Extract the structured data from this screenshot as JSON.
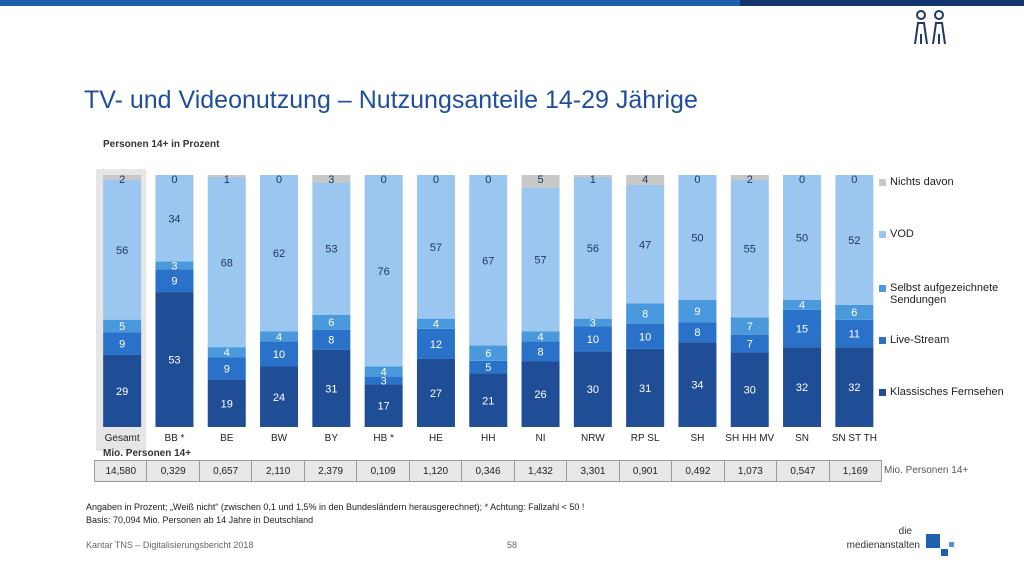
{
  "page": {
    "title": "TV- und Videonutzung – Nutzungsanteile 14-29 Jährige",
    "subtitle": "Personen 14+ in Prozent",
    "mio_title": "Mio. Personen 14+",
    "mio_side_label": "Mio.  Personen 14+",
    "note_line1": "Angaben in Prozent; „Weiß nicht“ (zwischen 0,1 und 1,5% in den Bundesländern herausgerechnet); * Achtung: Fallzahl < 50 !",
    "note_line2": "Basis: 70,094 Mio. Personen ab 14 Jahre in Deutschland",
    "footer": "Kantar TNS – Digitalisierungsbericht 2018",
    "page_number": "58",
    "logo_line1": "die",
    "logo_line2": "medienanstalten",
    "people_icon": "people-icon"
  },
  "mio_values": [
    "14,580",
    "0,329",
    "0,657",
    "2,110",
    "2,379",
    "0,109",
    "1,120",
    "0,346",
    "1,432",
    "3,301",
    "0,901",
    "0,492",
    "1,073",
    "0,547",
    "1,169"
  ],
  "chart_data": {
    "type": "bar",
    "stacked": true,
    "percent_scale": true,
    "ylim": [
      0,
      100
    ],
    "title": "TV- und Videonutzung – Nutzungsanteile 14-29 Jährige",
    "ylabel": "Personen 14+ in Prozent",
    "legend_placement": "right",
    "highlight_category": "Gesamt",
    "categories": [
      "Gesamt",
      "BB *",
      "BE",
      "BW",
      "BY",
      "HB *",
      "HE",
      "HH",
      "NI",
      "NRW",
      "RP SL",
      "SH",
      "SH HH MV",
      "SN",
      "SN ST TH"
    ],
    "series": [
      {
        "name": "Klassisches Fernsehen",
        "color": "#1f4e97",
        "values": [
          29,
          53,
          19,
          24,
          31,
          17,
          27,
          21,
          26,
          30,
          31,
          34,
          30,
          32,
          32
        ]
      },
      {
        "name": "Live-Stream",
        "color": "#2a72c9",
        "values": [
          9,
          9,
          9,
          10,
          8,
          3,
          12,
          5,
          8,
          10,
          10,
          8,
          7,
          15,
          11
        ]
      },
      {
        "name": "Selbst aufgezeichnete Sendungen",
        "color": "#4a99dd",
        "values": [
          5,
          3,
          4,
          4,
          6,
          4,
          4,
          6,
          4,
          3,
          8,
          9,
          7,
          4,
          6
        ]
      },
      {
        "name": "VOD",
        "color": "#9ac6ef",
        "values": [
          56,
          34,
          68,
          62,
          53,
          76,
          57,
          67,
          57,
          56,
          47,
          50,
          55,
          50,
          52
        ]
      },
      {
        "name": "Nichts davon",
        "color": "#c8c8c8",
        "values": [
          2,
          0,
          1,
          0,
          3,
          0,
          0,
          0,
          5,
          1,
          4,
          0,
          2,
          0,
          0
        ]
      }
    ]
  }
}
